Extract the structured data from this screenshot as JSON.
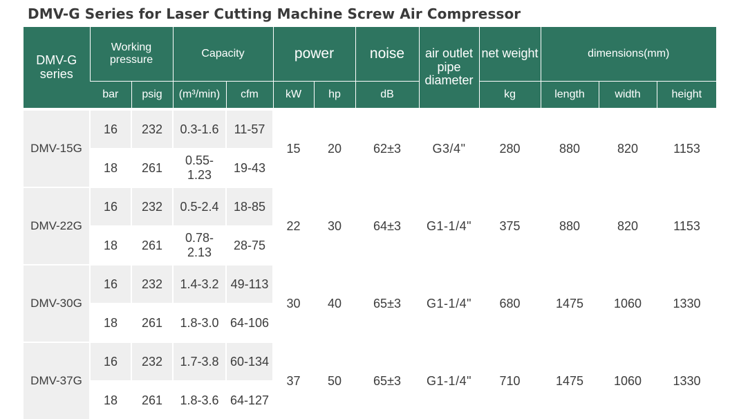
{
  "title": "DMV-G Series for Laser Cutting Machine Screw Air Compressor",
  "header": {
    "series": "DMV-G series",
    "working_pressure": "Working pressure",
    "capacity": "Capacity",
    "power": "power",
    "noise": "noise",
    "outlet": "air outlet pipe diameter",
    "net_weight": "net weight",
    "dimensions": "dimensions(mm)",
    "units": {
      "bar": "bar",
      "psig": "psig",
      "m3min": "(m³/min)",
      "cfm": "cfm",
      "kw": "kW",
      "hp": "hp",
      "db": "dB",
      "kg": "kg",
      "length": "length",
      "width": "width",
      "height": "height"
    }
  },
  "rows": [
    {
      "model": "DMV-15G",
      "p1": {
        "bar": "16",
        "psig": "232",
        "m3": "0.3-1.6",
        "cfm": "11-57"
      },
      "p2": {
        "bar": "18",
        "psig": "261",
        "m3": "0.55-1.23",
        "cfm": "19-43"
      },
      "kw": "15",
      "hp": "20",
      "noise": "62±3",
      "outlet": "G3/4\"",
      "kg": "280",
      "length": "880",
      "width": "820",
      "height": "1153"
    },
    {
      "model": "DMV-22G",
      "p1": {
        "bar": "16",
        "psig": "232",
        "m3": "0.5-2.4",
        "cfm": "18-85"
      },
      "p2": {
        "bar": "18",
        "psig": "261",
        "m3": "0.78-2.13",
        "cfm": "28-75"
      },
      "kw": "22",
      "hp": "30",
      "noise": "64±3",
      "outlet": "G1-1/4\"",
      "kg": "375",
      "length": "880",
      "width": "820",
      "height": "1153"
    },
    {
      "model": "DMV-30G",
      "p1": {
        "bar": "16",
        "psig": "232",
        "m3": "1.4-3.2",
        "cfm": "49-113"
      },
      "p2": {
        "bar": "18",
        "psig": "261",
        "m3": "1.8-3.0",
        "cfm": "64-106"
      },
      "kw": "30",
      "hp": "40",
      "noise": "65±3",
      "outlet": "G1-1/4\"",
      "kg": "680",
      "length": "1475",
      "width": "1060",
      "height": "1330"
    },
    {
      "model": "DMV-37G",
      "p1": {
        "bar": "16",
        "psig": "232",
        "m3": "1.7-3.8",
        "cfm": "60-134"
      },
      "p2": {
        "bar": "18",
        "psig": "261",
        "m3": "1.8-3.6",
        "cfm": "64-127"
      },
      "kw": "37",
      "hp": "50",
      "noise": "65±3",
      "outlet": "G1-1/4\"",
      "kg": "710",
      "length": "1475",
      "width": "1060",
      "height": "1330"
    }
  ],
  "colors": {
    "header_bg": "#2e7560",
    "row_gray": "#efefef",
    "text": "#3c3c3c"
  }
}
